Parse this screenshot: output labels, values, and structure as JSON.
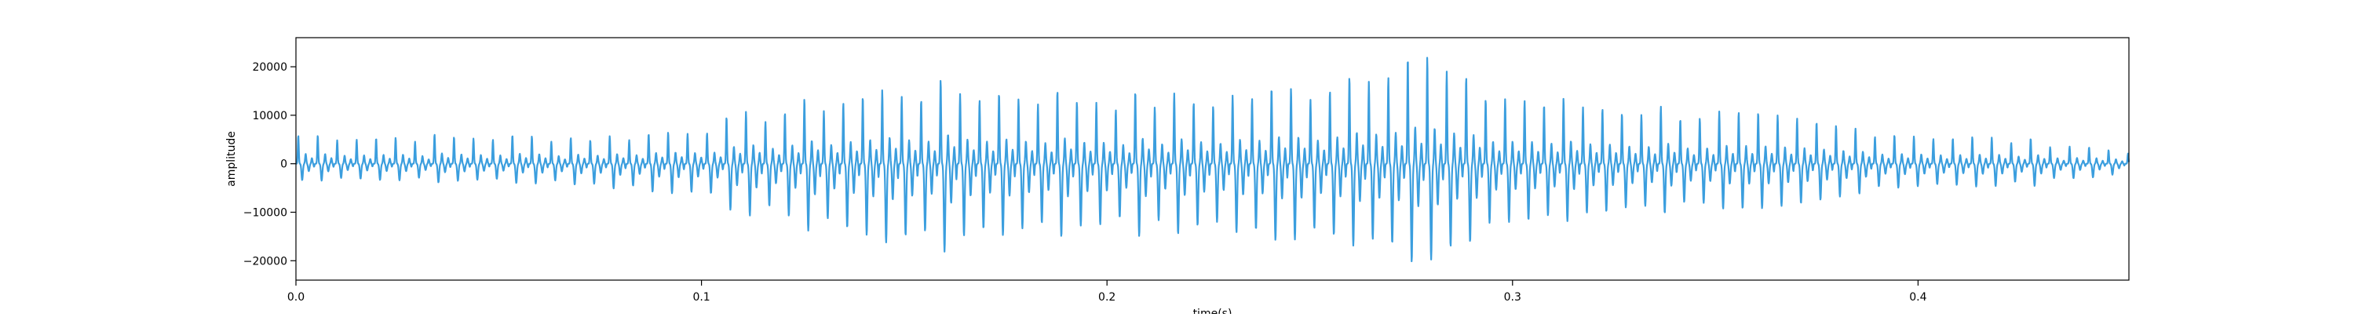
{
  "chart_data": {
    "type": "line",
    "title": "",
    "xlabel": "time(s)",
    "ylabel": "amplitude",
    "xlim": [
      0.0,
      0.452
    ],
    "ylim": [
      -24000,
      26000
    ],
    "grid": false,
    "legend": "none",
    "series_color": "#3b9ede",
    "x_ticks": [
      0.0,
      0.1,
      0.2,
      0.3,
      0.4
    ],
    "x_tick_labels": [
      "0.0",
      "0.1",
      "0.2",
      "0.3",
      "0.4"
    ],
    "y_ticks": [
      20000,
      10000,
      0,
      -10000,
      -20000
    ],
    "y_tick_labels": [
      "20000",
      "10000",
      "0",
      "−10000",
      "−20000"
    ],
    "series": [
      {
        "description_of_signal": "periodic speech-like waveform; pitch period ~0.0048 s",
        "period_s": 0.0048,
        "envelope": {
          "t": [
            0.0,
            0.02,
            0.05,
            0.08,
            0.1,
            0.12,
            0.15,
            0.18,
            0.2,
            0.22,
            0.25,
            0.265,
            0.275,
            0.29,
            0.31,
            0.34,
            0.37,
            0.4,
            0.43,
            0.452
          ],
          "peak_pos": [
            6000,
            5500,
            5500,
            5500,
            7500,
            11000,
            15500,
            14500,
            13500,
            13000,
            15500,
            20500,
            23500,
            15000,
            12500,
            11000,
            8500,
            6000,
            4500,
            2500
          ],
          "peak_neg": [
            -3500,
            -3500,
            -3500,
            -5000,
            -7000,
            -11000,
            -16500,
            -14500,
            -13500,
            -13000,
            -15500,
            -18500,
            -21500,
            -14000,
            -11000,
            -9500,
            -7500,
            -5000,
            -4000,
            -2000
          ]
        }
      }
    ]
  }
}
